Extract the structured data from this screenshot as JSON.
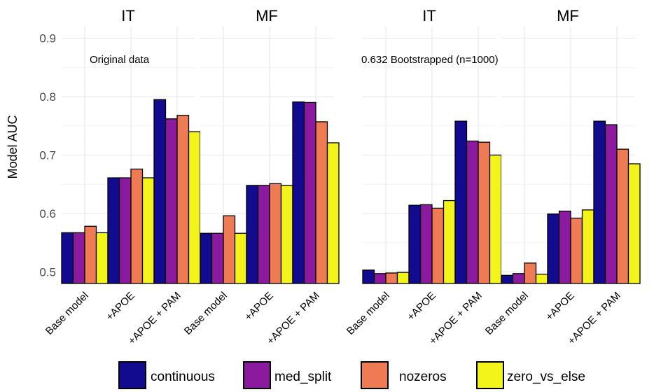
{
  "chart_data": {
    "type": "bar",
    "ylabel": "Model AUC",
    "ylim": [
      0.48,
      0.92
    ],
    "yticks": [
      0.5,
      0.6,
      0.7,
      0.8,
      0.9
    ],
    "grid": true,
    "legend_position": "bottom",
    "categories": [
      "Base model",
      "+APOE",
      "+APOE + PAM"
    ],
    "series_names": [
      "continuous",
      "med_split",
      "nozeros",
      "zero_vs_else"
    ],
    "colors": {
      "continuous": "#120a8f",
      "med_split": "#8b1a9e",
      "nozeros": "#ef7b55",
      "zero_vs_else": "#f4f41d"
    },
    "panels": [
      {
        "strip": "IT",
        "annotation": "Original data",
        "series": [
          {
            "name": "continuous",
            "values": [
              0.567,
              0.661,
              0.795
            ]
          },
          {
            "name": "med_split",
            "values": [
              0.567,
              0.661,
              0.762
            ]
          },
          {
            "name": "nozeros",
            "values": [
              0.578,
              0.676,
              0.768
            ]
          },
          {
            "name": "zero_vs_else",
            "values": [
              0.567,
              0.661,
              0.74
            ]
          }
        ]
      },
      {
        "strip": "MF",
        "annotation": "",
        "series": [
          {
            "name": "continuous",
            "values": [
              0.566,
              0.648,
              0.791
            ]
          },
          {
            "name": "med_split",
            "values": [
              0.566,
              0.648,
              0.79
            ]
          },
          {
            "name": "nozeros",
            "values": [
              0.596,
              0.651,
              0.757
            ]
          },
          {
            "name": "zero_vs_else",
            "values": [
              0.566,
              0.648,
              0.721
            ]
          }
        ]
      },
      {
        "strip": "IT",
        "annotation": "0.632 Bootstrapped (n=1000)",
        "series": [
          {
            "name": "continuous",
            "values": [
              0.503,
              0.614,
              0.758
            ]
          },
          {
            "name": "med_split",
            "values": [
              0.497,
              0.615,
              0.724
            ]
          },
          {
            "name": "nozeros",
            "values": [
              0.498,
              0.609,
              0.722
            ]
          },
          {
            "name": "zero_vs_else",
            "values": [
              0.499,
              0.622,
              0.7
            ]
          }
        ]
      },
      {
        "strip": "MF",
        "annotation": "",
        "series": [
          {
            "name": "continuous",
            "values": [
              0.494,
              0.599,
              0.758
            ]
          },
          {
            "name": "med_split",
            "values": [
              0.497,
              0.604,
              0.752
            ]
          },
          {
            "name": "nozeros",
            "values": [
              0.515,
              0.592,
              0.71
            ]
          },
          {
            "name": "zero_vs_else",
            "values": [
              0.496,
              0.606,
              0.685
            ]
          }
        ]
      }
    ]
  }
}
